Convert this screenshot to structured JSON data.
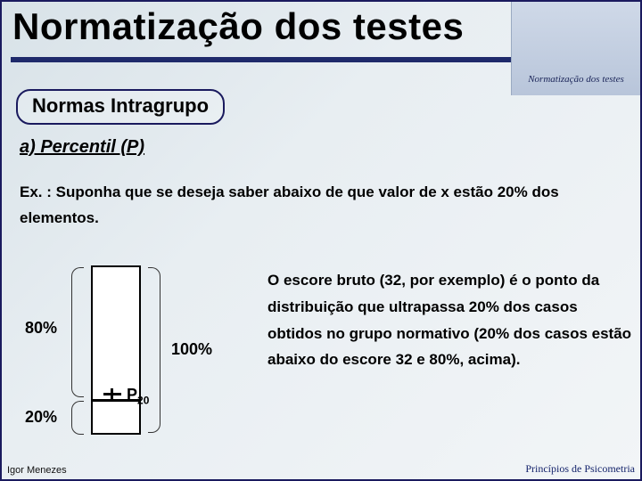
{
  "header": {
    "title": "Normatização dos testes",
    "thumbnail_text": "Normatização dos testes",
    "underline_color": "#1f2a6b"
  },
  "box_label": "Normas Intragrupo",
  "subheading": "a) Percentil (P)",
  "example": "Ex. : Suponha que se deseja saber abaixo de que valor de x estão 20% dos elementos.",
  "diagram": {
    "upper_label": "80%",
    "lower_label": "20%",
    "total_label": "100%",
    "marker_label_main": "P",
    "marker_label_sub": "20",
    "bar_border_color": "#000000",
    "bar_fill_color": "#ffffff",
    "split_ratio_upper": 0.8,
    "split_ratio_lower": 0.2
  },
  "explanation": "O escore bruto (32, por exemplo) é o ponto da distribuição que ultrapassa 20% dos casos obtidos no grupo normativo (20% dos casos estão abaixo do escore 32 e 80%, acima).",
  "footer": {
    "left": "Igor Menezes",
    "right": "Princípios de Psicometria"
  },
  "colors": {
    "slide_border": "#1a1a5e",
    "bg_gradient_from": "#d8e2e8",
    "bg_gradient_to": "#f2f5f7"
  }
}
